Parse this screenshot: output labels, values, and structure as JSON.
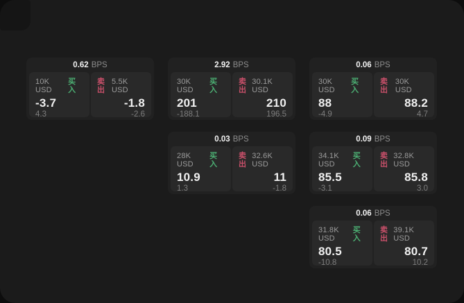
{
  "labels": {
    "bps_unit": "BPS",
    "buy_label": "买入",
    "sell_label": "卖出"
  },
  "colors": {
    "buy": "#4caf73",
    "sell": "#c9506a",
    "surface": "#1b1b1b",
    "card": "#212121",
    "panel": "#292929"
  },
  "cards": [
    {
      "column": 1,
      "row": 1,
      "bps": "0.62",
      "buy": {
        "amount": "10K USD",
        "value": "-3.7",
        "delta": "4.3"
      },
      "sell": {
        "amount": "5.5K USD",
        "value": "-1.8",
        "delta": "-2.6"
      }
    },
    {
      "column": 2,
      "row": 1,
      "bps": "2.92",
      "buy": {
        "amount": "30K USD",
        "value": "201",
        "delta": "-188.1"
      },
      "sell": {
        "amount": "30.1K USD",
        "value": "210",
        "delta": "196.5"
      }
    },
    {
      "column": 3,
      "row": 1,
      "bps": "0.06",
      "buy": {
        "amount": "30K USD",
        "value": "88",
        "delta": "-4.9"
      },
      "sell": {
        "amount": "30K USD",
        "value": "88.2",
        "delta": "4.7"
      }
    },
    {
      "column": 2,
      "row": 2,
      "bps": "0.03",
      "buy": {
        "amount": "28K USD",
        "value": "10.9",
        "delta": "1.3"
      },
      "sell": {
        "amount": "32.6K USD",
        "value": "11",
        "delta": "-1.8"
      }
    },
    {
      "column": 3,
      "row": 2,
      "bps": "0.09",
      "buy": {
        "amount": "34.1K USD",
        "value": "85.5",
        "delta": "-3.1"
      },
      "sell": {
        "amount": "32.8K USD",
        "value": "85.8",
        "delta": "3.0"
      }
    },
    {
      "column": 3,
      "row": 3,
      "bps": "0.06",
      "buy": {
        "amount": "31.8K USD",
        "value": "80.5",
        "delta": "-10.8"
      },
      "sell": {
        "amount": "39.1K USD",
        "value": "80.7",
        "delta": "10.2"
      }
    }
  ]
}
